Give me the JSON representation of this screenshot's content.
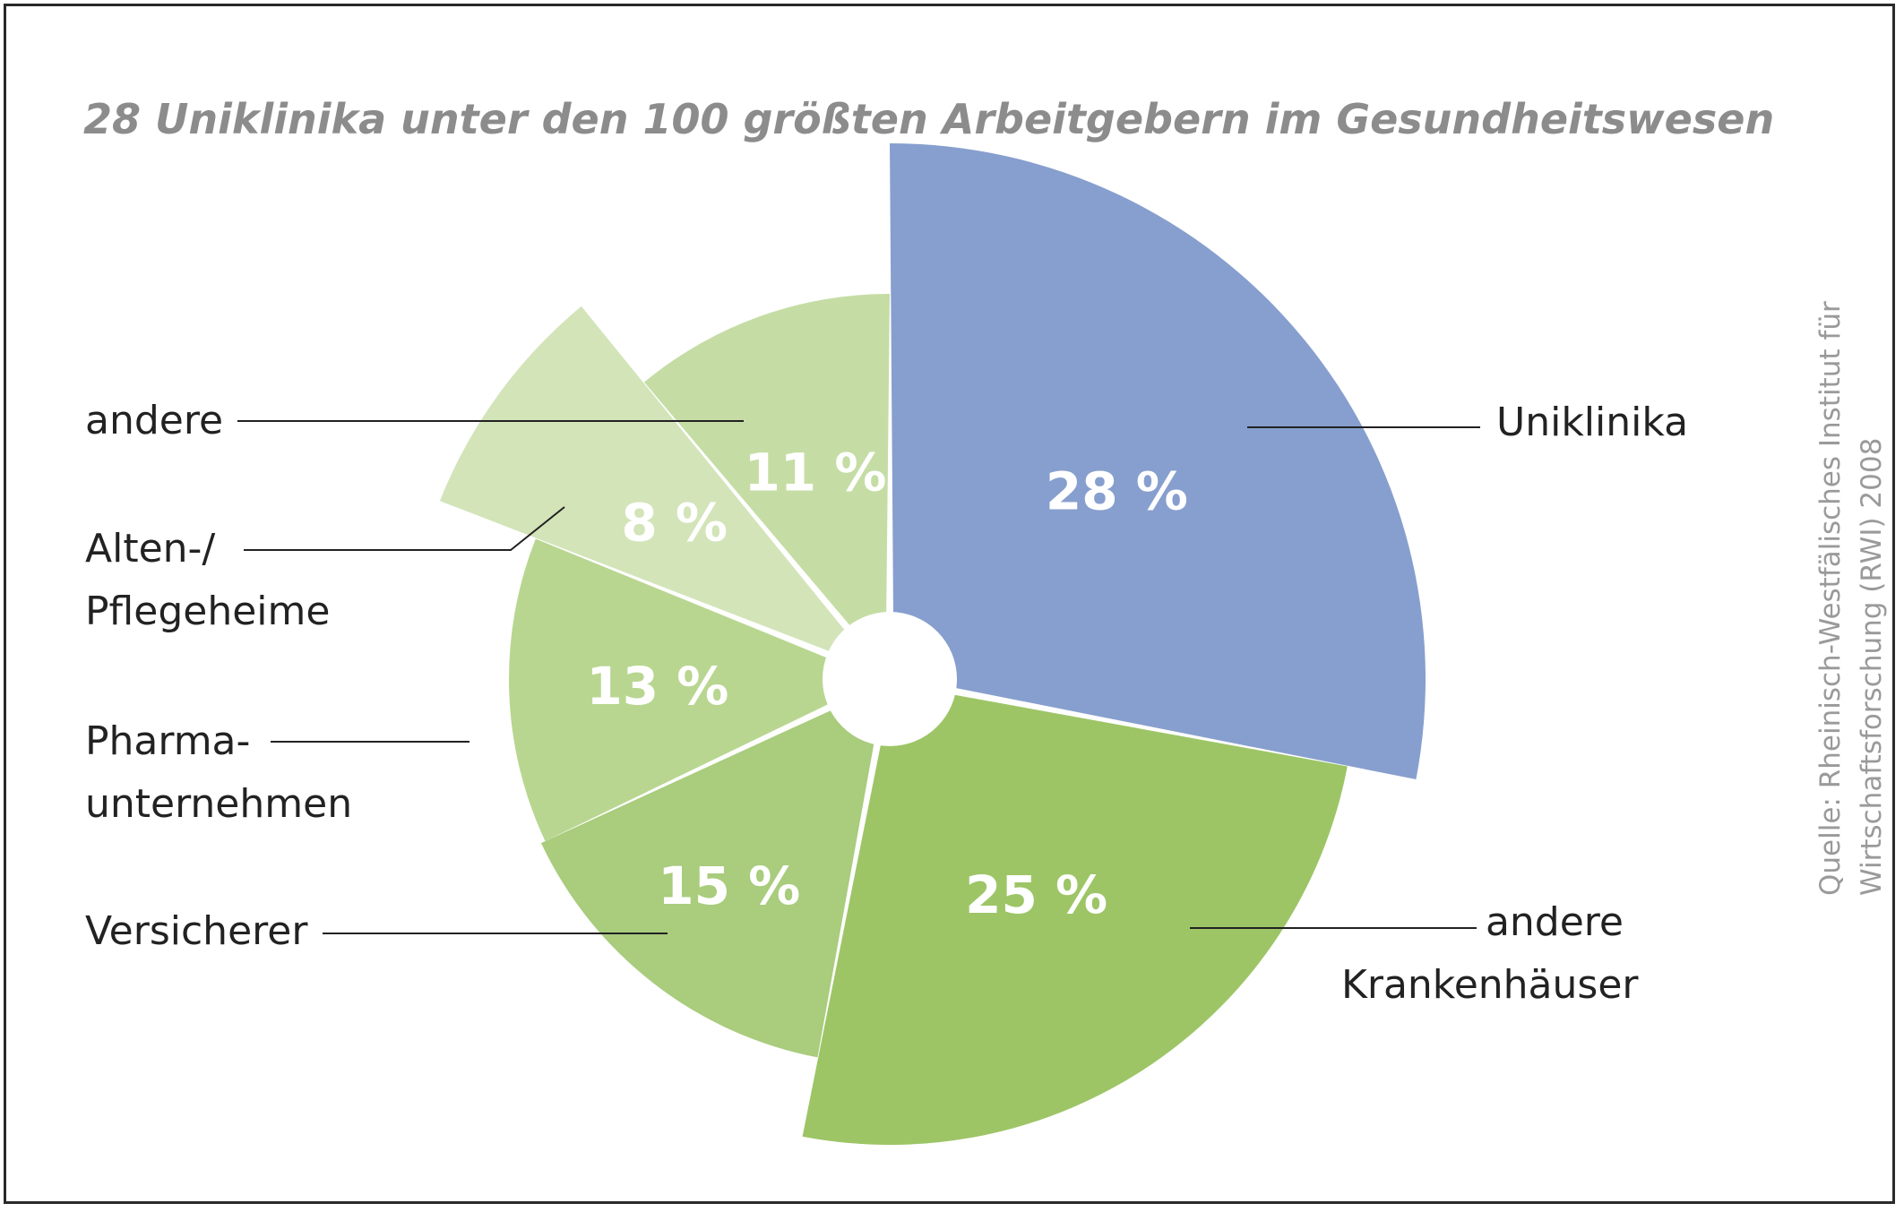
{
  "chart_data": {
    "type": "pie",
    "title": "28 Uniklinika unter den 100 größten Arbeitgebern im Gesundheitswesen",
    "slices": [
      {
        "label_lines": [
          "Uniklinika"
        ],
        "value": 28,
        "value_label": "28 %",
        "color": "#879fce"
      },
      {
        "label_lines": [
          "andere",
          "Krankenhäuser"
        ],
        "value": 25,
        "value_label": "25 %",
        "color": "#9dc566"
      },
      {
        "label_lines": [
          "Versicherer"
        ],
        "value": 15,
        "value_label": "15 %",
        "color": "#a9cc7d"
      },
      {
        "label_lines": [
          "Pharma-",
          "unternehmen"
        ],
        "value": 13,
        "value_label": "13 %",
        "color": "#b8d690"
      },
      {
        "label_lines": [
          "Alten-/",
          "Pflegeheime"
        ],
        "value": 8,
        "value_label": "8 %",
        "color": "#d3e4b9"
      },
      {
        "label_lines": [
          "andere"
        ],
        "value": 11,
        "value_label": "11 %",
        "color": "#c5dda5"
      }
    ],
    "source_lines": [
      "Quelle: Rheinisch-Westfälisches Institut für",
      "Wirtschaftsforschung (RWI) 2008"
    ]
  }
}
